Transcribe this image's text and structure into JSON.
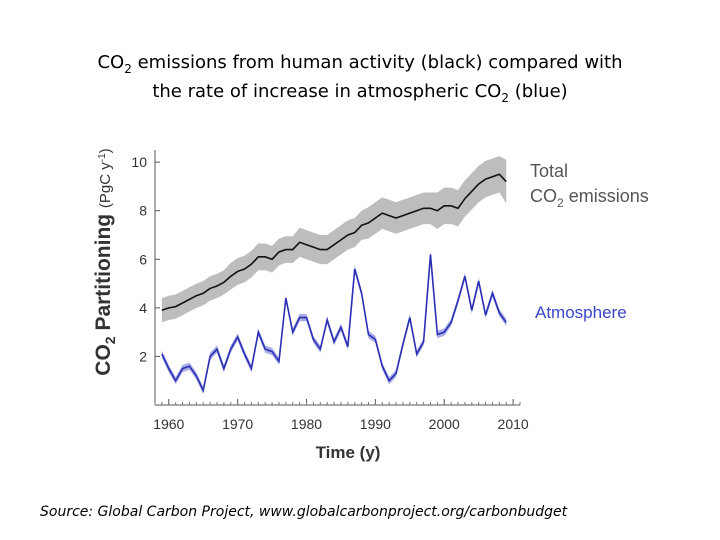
{
  "chart_data": {
    "type": "line",
    "title": [
      "CO",
      "2",
      " emissions from human activity (black) compared with",
      "the rate of increase in atmospheric CO",
      "2",
      " (blue)"
    ],
    "y_label": [
      "CO",
      "2",
      " Partitioning ",
      "(PgC y",
      "-1",
      ")"
    ],
    "x_label": "Time (y)",
    "source": "Source:  Global Carbon Project, www.globalcarbonproject.org/carbonbudget",
    "x": [
      1959,
      1960,
      1961,
      1962,
      1963,
      1964,
      1965,
      1966,
      1967,
      1968,
      1969,
      1970,
      1971,
      1972,
      1973,
      1974,
      1975,
      1976,
      1977,
      1978,
      1979,
      1980,
      1981,
      1982,
      1983,
      1984,
      1985,
      1986,
      1987,
      1988,
      1989,
      1990,
      1991,
      1992,
      1993,
      1994,
      1995,
      1996,
      1997,
      1998,
      1999,
      2000,
      2001,
      2002,
      2003,
      2004,
      2005,
      2006,
      2007,
      2008,
      2009
    ],
    "xlim": [
      1958,
      2011
    ],
    "xticks": [
      1960,
      1970,
      1980,
      1990,
      2000,
      2010
    ],
    "ylim": [
      0,
      10.5
    ],
    "yticks": [
      2,
      4,
      6,
      8,
      10
    ],
    "series": [
      {
        "label": [
          "Total",
          "CO",
          "2",
          " emissions"
        ],
        "color": "#111111",
        "band_color": "#bdbdbd",
        "values": [
          3.9,
          4.0,
          4.05,
          4.2,
          4.35,
          4.5,
          4.6,
          4.8,
          4.9,
          5.05,
          5.3,
          5.5,
          5.6,
          5.8,
          6.1,
          6.1,
          6.0,
          6.3,
          6.4,
          6.4,
          6.7,
          6.6,
          6.5,
          6.4,
          6.4,
          6.6,
          6.8,
          7.0,
          7.1,
          7.4,
          7.5,
          7.7,
          7.9,
          7.8,
          7.7,
          7.8,
          7.9,
          8.0,
          8.1,
          8.1,
          8.0,
          8.2,
          8.2,
          8.1,
          8.5,
          8.8,
          9.1,
          9.3,
          9.4,
          9.5,
          9.2
        ],
        "error": [
          0.5,
          0.5,
          0.5,
          0.5,
          0.5,
          0.5,
          0.5,
          0.5,
          0.5,
          0.5,
          0.55,
          0.55,
          0.55,
          0.55,
          0.55,
          0.55,
          0.55,
          0.55,
          0.55,
          0.55,
          0.6,
          0.6,
          0.6,
          0.6,
          0.6,
          0.6,
          0.6,
          0.6,
          0.6,
          0.6,
          0.65,
          0.65,
          0.65,
          0.65,
          0.65,
          0.65,
          0.65,
          0.65,
          0.65,
          0.65,
          0.75,
          0.75,
          0.75,
          0.75,
          0.75,
          0.75,
          0.75,
          0.75,
          0.75,
          0.75,
          0.9
        ]
      },
      {
        "label": [
          "Atmosphere"
        ],
        "color": "#2a2fb5",
        "band_color": "#a9aee6",
        "values": [
          2.1,
          1.5,
          1.0,
          1.5,
          1.6,
          1.2,
          0.6,
          2.0,
          2.3,
          1.5,
          2.3,
          2.8,
          2.1,
          1.5,
          3.0,
          2.3,
          2.2,
          1.8,
          4.4,
          3.0,
          3.6,
          3.6,
          2.7,
          2.3,
          3.5,
          2.6,
          3.2,
          2.4,
          5.6,
          4.6,
          2.9,
          2.7,
          1.6,
          1.0,
          1.3,
          2.5,
          3.6,
          2.1,
          2.6,
          6.2,
          2.9,
          3.0,
          3.4,
          4.3,
          5.3,
          3.9,
          5.1,
          3.7,
          4.6,
          3.8,
          3.4
        ],
        "error": 0.15
      }
    ]
  }
}
